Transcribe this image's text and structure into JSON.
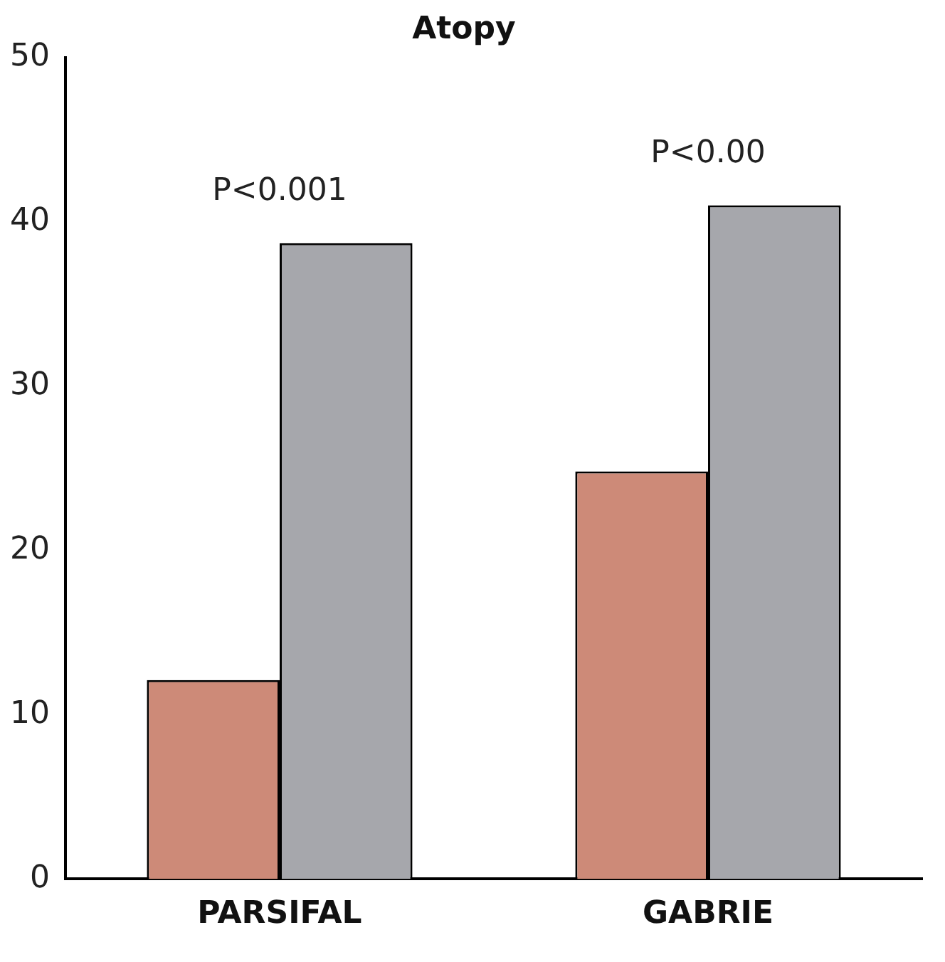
{
  "chart_data": {
    "type": "bar",
    "title": "Atopy",
    "categories": [
      "PARSIFAL",
      "GABRIE"
    ],
    "series": [
      {
        "color": "#cd8a78",
        "values": [
          12.1,
          24.8
        ]
      },
      {
        "color": "#a6a7ac",
        "values": [
          38.7,
          41.0
        ]
      }
    ],
    "ylim": [
      0,
      50
    ],
    "yticks": [
      0,
      10,
      20,
      30,
      40,
      50
    ],
    "grid": false,
    "legend": false,
    "annotations": [
      "P<0.001",
      "P<0.00"
    ]
  }
}
